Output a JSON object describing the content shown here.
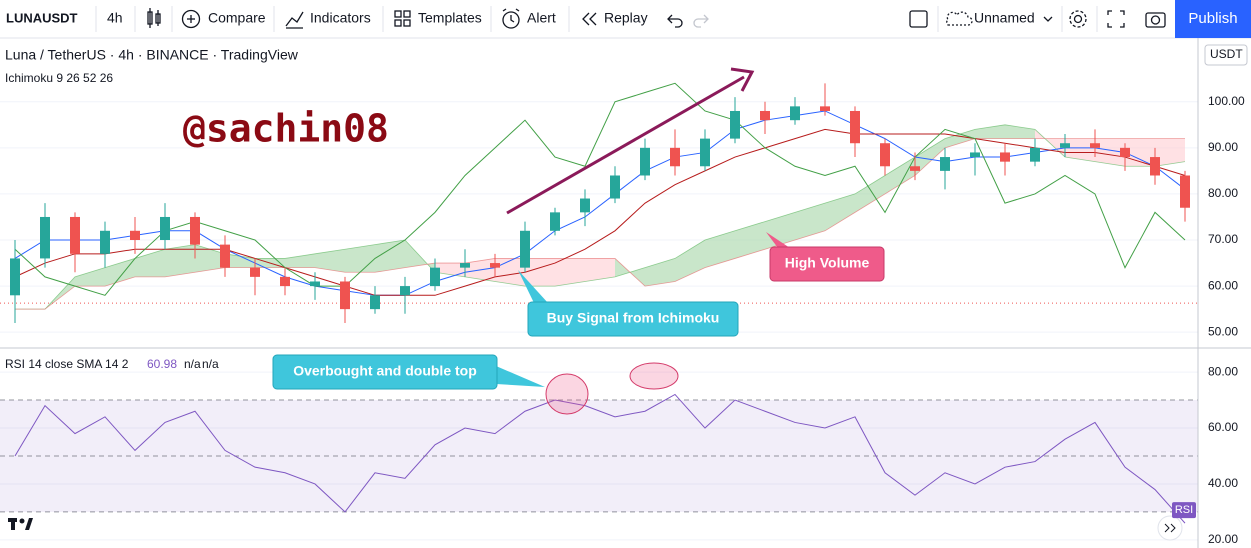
{
  "toolbar": {
    "symbol": "LUNAUSDT",
    "interval": "4h",
    "items": [
      "Compare",
      "Indicators",
      "Templates",
      "Alert",
      "Replay"
    ],
    "layout_name": "Unnamed",
    "publish": "Publish"
  },
  "chart_data": [
    {
      "type": "candlestick",
      "title": "Luna / TetherUS · 4h · BINANCE · TradingView",
      "indicator": "Ichimoku 9 26 52 26",
      "currency": "USDT",
      "open": [
        58,
        66,
        75,
        67,
        72,
        70,
        75,
        69,
        64,
        62,
        60,
        61,
        55,
        58,
        60,
        64,
        65,
        64,
        72,
        76,
        79,
        84,
        90,
        86,
        92,
        98,
        96,
        99,
        98,
        91,
        86,
        85,
        88,
        89,
        87,
        90,
        91,
        90,
        88,
        84
      ],
      "high": [
        70,
        78,
        76,
        74,
        75,
        78,
        76,
        71,
        66,
        64,
        63,
        62,
        60,
        62,
        66,
        68,
        67,
        74,
        77,
        81,
        86,
        92,
        94,
        94,
        101,
        100,
        101,
        104,
        99,
        92,
        89,
        90,
        91,
        91,
        92,
        93,
        94,
        91,
        90,
        85
      ],
      "low": [
        52,
        64,
        63,
        64,
        67,
        68,
        66,
        62,
        58,
        58,
        57,
        52,
        54,
        54,
        59,
        62,
        62,
        63,
        71,
        73,
        78,
        83,
        84,
        85,
        91,
        93,
        95,
        97,
        88,
        84,
        83,
        81,
        84,
        84,
        86,
        88,
        88,
        85,
        82,
        74
      ],
      "close": [
        66,
        75,
        67,
        72,
        70,
        75,
        69,
        64,
        62,
        60,
        61,
        55,
        58,
        60,
        64,
        65,
        64,
        72,
        76,
        79,
        84,
        90,
        86,
        92,
        98,
        96,
        99,
        98,
        91,
        86,
        85,
        88,
        89,
        87,
        90,
        91,
        90,
        88,
        84,
        77
      ],
      "up_color": "#26a69a",
      "down_color": "#ef5350",
      "series": [
        {
          "name": "Conversion Line",
          "color": "#2962ff",
          "values": [
            66,
            70,
            70,
            70,
            71,
            72,
            72,
            68,
            65,
            62,
            60,
            59,
            58,
            58,
            61,
            63,
            64,
            67,
            72,
            75,
            80,
            85,
            88,
            89,
            94,
            96,
            97,
            98,
            95,
            92,
            88,
            87,
            88,
            88,
            89,
            90,
            90,
            89,
            86,
            81
          ]
        },
        {
          "name": "Base Line",
          "color": "#b71c1c",
          "values": [
            62,
            65,
            67,
            67,
            68,
            68,
            68,
            68,
            66,
            64,
            62,
            60,
            58,
            58,
            58,
            60,
            62,
            63,
            65,
            68,
            72,
            78,
            82,
            85,
            88,
            90,
            92,
            94,
            93,
            93,
            93,
            93,
            92,
            91,
            90,
            89,
            89,
            88,
            86,
            84
          ]
        },
        {
          "name": "Lagging Span",
          "color": "#43a047",
          "values": [
            68,
            62,
            60,
            58,
            66,
            72,
            74,
            72,
            70,
            64,
            60,
            60,
            66,
            70,
            76,
            84,
            90,
            96,
            88,
            86,
            100,
            102,
            104,
            98,
            96,
            90,
            86,
            84,
            86,
            76,
            88,
            94,
            92,
            78,
            80,
            84,
            80,
            64,
            76,
            70
          ]
        }
      ],
      "span_a": [
        55,
        55,
        62,
        64,
        66,
        68,
        69,
        67,
        66,
        66,
        67,
        68,
        69,
        70,
        63,
        62,
        61,
        60,
        60,
        61,
        62,
        64,
        66,
        70,
        72,
        74,
        76,
        78,
        80,
        84,
        88,
        92,
        94,
        95,
        94,
        88,
        87,
        86,
        86,
        87
      ],
      "span_b": [
        55,
        55,
        60,
        60,
        62,
        62,
        63,
        64,
        64,
        64,
        64,
        63,
        63,
        64,
        65,
        65,
        66,
        66,
        66,
        66,
        66,
        60,
        61,
        64,
        66,
        68,
        70,
        72,
        76,
        80,
        84,
        90,
        92,
        92,
        92,
        92,
        92,
        92,
        92,
        92
      ],
      "cloud_up_color": "#a5d6a7",
      "cloud_down_color": "#ffcdd2",
      "price_line": 56.3,
      "ylim": [
        47,
        113.4
      ],
      "yticks": [
        {
          "value": 50,
          "label": "50.00"
        },
        {
          "value": 60,
          "label": "60.00"
        },
        {
          "value": 70,
          "label": "70.00"
        },
        {
          "value": 80,
          "label": "80.00"
        },
        {
          "value": 90,
          "label": "90.00"
        },
        {
          "value": 100,
          "label": "100.00"
        }
      ],
      "annotations": [
        "@sachin08",
        "High Volume",
        "Buy Signal from Ichimoku"
      ]
    },
    {
      "type": "line",
      "title": "RSI 14 close SMA 14 2",
      "legend_values": [
        "60.98",
        "n/a",
        "n/a"
      ],
      "badge": "RSI",
      "series": [
        {
          "name": "RSI",
          "color": "#7e57c2",
          "values": [
            50,
            68,
            58,
            64,
            52,
            62,
            66,
            52,
            46,
            44,
            40,
            30,
            44,
            42,
            54,
            60,
            58,
            66,
            70,
            68,
            64,
            66,
            72,
            60,
            70,
            66,
            62,
            60,
            64,
            44,
            36,
            44,
            40,
            46,
            48,
            56,
            62,
            46,
            38,
            26
          ]
        }
      ],
      "bands": [
        70,
        50,
        30
      ],
      "band_color": "#7e57c2",
      "ylim": [
        17.1,
        87.9
      ],
      "yticks": [
        {
          "value": 20,
          "label": "20.00"
        },
        {
          "value": 40,
          "label": "40.00"
        },
        {
          "value": 60,
          "label": "60.00"
        },
        {
          "value": 80,
          "label": "80.00"
        }
      ],
      "annotations": [
        "Overbought and double top"
      ]
    }
  ]
}
